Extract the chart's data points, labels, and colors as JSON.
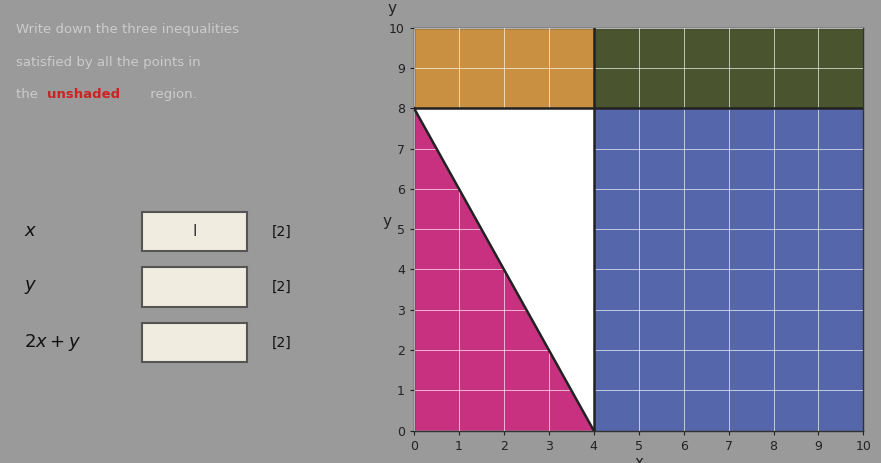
{
  "xlim": [
    0,
    10
  ],
  "ylim": [
    0,
    10
  ],
  "xticks": [
    0,
    1,
    2,
    3,
    4,
    5,
    6,
    7,
    8,
    9,
    10
  ],
  "yticks": [
    0,
    1,
    2,
    3,
    4,
    5,
    6,
    7,
    8,
    9,
    10
  ],
  "xlabel": "x",
  "ylabel": "y",
  "fig_background": "#9a9a9a",
  "plot_background": "#aaaaaa",
  "shade_pink_color": "#c83080",
  "shade_blue_color": "#5566aa",
  "shade_orange_color": "#c89040",
  "shade_darkolive_color": "#4a5530",
  "grid_color": "#ffffff",
  "line_x": 4,
  "line_y": 8,
  "line_2xpy_const": 8,
  "text_color": "#cccccc",
  "red_color": "#cc2222",
  "label_color": "#111111",
  "box_fill": "#f0ece0",
  "box_edge": "#555555"
}
